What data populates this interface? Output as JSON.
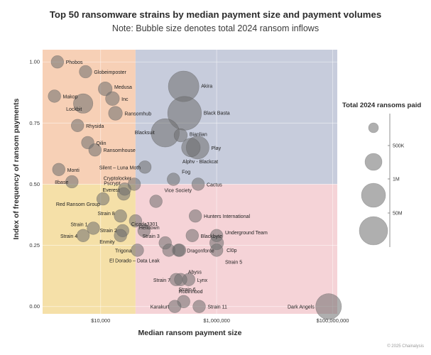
{
  "chart_data": {
    "type": "scatter",
    "title": "Top 50 ransomware strains by median payment size and payment volumes",
    "subtitle": "Note: Bubble size denotes total 2024 ransom inflows",
    "xlabel": "Median ransom payment size",
    "ylabel": "Index of frequency of ransom payments",
    "x_scale": "log",
    "xlim": [
      1000,
      120000000
    ],
    "ylim": [
      -0.03,
      1.05
    ],
    "x_ticks": [
      {
        "value": 10000,
        "label": "$10,000"
      },
      {
        "value": 1000000,
        "label": "$1,000,000"
      },
      {
        "value": 100000000,
        "label": "$100,000,000"
      }
    ],
    "y_ticks": [
      {
        "value": 0.0,
        "label": "0.00"
      },
      {
        "value": 0.25,
        "label": "0.25"
      },
      {
        "value": 0.5,
        "label": "0.50"
      },
      {
        "value": 0.75,
        "label": "0.75"
      },
      {
        "value": 1.0,
        "label": "1.00"
      }
    ],
    "quadrant_split": {
      "x": 40000,
      "y": 0.5
    },
    "quadrant_colors": {
      "top_left": "#f7d0b6",
      "top_right": "#c7ccdc",
      "bottom_left": "#f5e0a8",
      "bottom_right": "#f5d3d7"
    },
    "bubble_color": "#6e6e6e",
    "points": [
      {
        "name": "Phobos",
        "x": 1800,
        "y": 1.0,
        "size": 6
      },
      {
        "name": "Globeimposter",
        "x": 5500,
        "y": 0.96,
        "size": 6
      },
      {
        "name": "Medusa",
        "x": 12000,
        "y": 0.89,
        "size": 8
      },
      {
        "name": "Akira",
        "x": 270000,
        "y": 0.9,
        "size": 60
      },
      {
        "name": "Makop",
        "x": 1600,
        "y": 0.86,
        "size": 6
      },
      {
        "name": "Inc",
        "x": 16000,
        "y": 0.85,
        "size": 8
      },
      {
        "name": "Lockbit",
        "x": 5000,
        "y": 0.83,
        "size": 20
      },
      {
        "name": "Ransomhub",
        "x": 18000,
        "y": 0.79,
        "size": 8
      },
      {
        "name": "Black Basta",
        "x": 280000,
        "y": 0.79,
        "size": 75
      },
      {
        "name": "Rhysida",
        "x": 4000,
        "y": 0.74,
        "size": 6
      },
      {
        "name": "Blacksuit",
        "x": 130000,
        "y": 0.71,
        "size": 50
      },
      {
        "name": "Bianlian",
        "x": 240000,
        "y": 0.7,
        "size": 7
      },
      {
        "name": "Qilin",
        "x": 6000,
        "y": 0.67,
        "size": 6
      },
      {
        "name": "Play",
        "x": 470000,
        "y": 0.65,
        "size": 30
      },
      {
        "name": "Ransomhouse",
        "x": 8000,
        "y": 0.64,
        "size": 6
      },
      {
        "name": "Alphv - Blackcat",
        "x": 360000,
        "y": 0.65,
        "size": 18
      },
      {
        "name": "Silent – Luna Moth",
        "x": 58000,
        "y": 0.57,
        "size": 6
      },
      {
        "name": "Monti",
        "x": 1900,
        "y": 0.56,
        "size": 6
      },
      {
        "name": "Fog",
        "x": 180000,
        "y": 0.52,
        "size": 6
      },
      {
        "name": "8base",
        "x": 3200,
        "y": 0.51,
        "size": 6
      },
      {
        "name": "Cryptolocker",
        "x": 38000,
        "y": 0.5,
        "size": 6
      },
      {
        "name": "Cactus",
        "x": 480000,
        "y": 0.5,
        "size": 6
      },
      {
        "name": "Pscrypt",
        "x": 26000,
        "y": 0.48,
        "size": 6
      },
      {
        "name": "Everest",
        "x": 25000,
        "y": 0.46,
        "size": 6
      },
      {
        "name": "Red Ransom Group",
        "x": 11000,
        "y": 0.44,
        "size": 6
      },
      {
        "name": "Vice Society",
        "x": 90000,
        "y": 0.43,
        "size": 6
      },
      {
        "name": "Strain 8",
        "x": 22000,
        "y": 0.37,
        "size": 6
      },
      {
        "name": "Hunters International",
        "x": 430000,
        "y": 0.37,
        "size": 6
      },
      {
        "name": "Cicada3301",
        "x": 40000,
        "y": 0.35,
        "size": 6
      },
      {
        "name": "Strain 1",
        "x": 7500,
        "y": 0.32,
        "size": 6
      },
      {
        "name": "Strain 2",
        "x": 24000,
        "y": 0.31,
        "size": 6
      },
      {
        "name": "Helldown",
        "x": 56000,
        "y": 0.31,
        "size": 6
      },
      {
        "name": "Strain 4",
        "x": 5000,
        "y": 0.29,
        "size": 6
      },
      {
        "name": "Enmity",
        "x": 22000,
        "y": 0.29,
        "size": 6
      },
      {
        "name": "Blackbyte",
        "x": 380000,
        "y": 0.29,
        "size": 6
      },
      {
        "name": "Underground Team",
        "x": 1000000,
        "y": 0.29,
        "size": 6
      },
      {
        "name": "Strain 3",
        "x": 130000,
        "y": 0.26,
        "size": 6
      },
      {
        "name": "Cl0p",
        "x": 1000000,
        "y": 0.26,
        "size": 8
      },
      {
        "name": "Trigona",
        "x": 43000,
        "y": 0.23,
        "size": 6
      },
      {
        "name": "Dragonforce",
        "x": 220000,
        "y": 0.23,
        "size": 6
      },
      {
        "name": "Strain 5",
        "x": 1000000,
        "y": 0.23,
        "size": 6
      },
      {
        "name": "El Dorado – Data Leak",
        "x": 150000,
        "y": 0.23,
        "size": 6
      },
      {
        "name": "Abyss",
        "x": 230000,
        "y": 0.23,
        "size": 6
      },
      {
        "name": "Strain 7",
        "x": 200000,
        "y": 0.11,
        "size": 6
      },
      {
        "name": "Lynx",
        "x": 330000,
        "y": 0.11,
        "size": 6
      },
      {
        "name": "Strain 6",
        "x": 240000,
        "y": 0.11,
        "size": 6
      },
      {
        "name": "Robinhood",
        "x": 270000,
        "y": 0.02,
        "size": 6
      },
      {
        "name": "Karakurt",
        "x": 190000,
        "y": 0.0,
        "size": 6
      },
      {
        "name": "Strain 11",
        "x": 500000,
        "y": 0.0,
        "size": 6
      },
      {
        "name": "Dark Angels",
        "x": 85000000,
        "y": 0.0,
        "size": 40
      }
    ],
    "legend": {
      "title": "Total 2024 ransoms paid",
      "entries": [
        {
          "label": "500K",
          "size": 5
        },
        {
          "label": "1M",
          "size": 15
        },
        {
          "label": "",
          "size": 30
        },
        {
          "label": "50M",
          "size": 50
        }
      ]
    }
  },
  "footer": {
    "copyright": "© 2025 Chainalysis"
  }
}
